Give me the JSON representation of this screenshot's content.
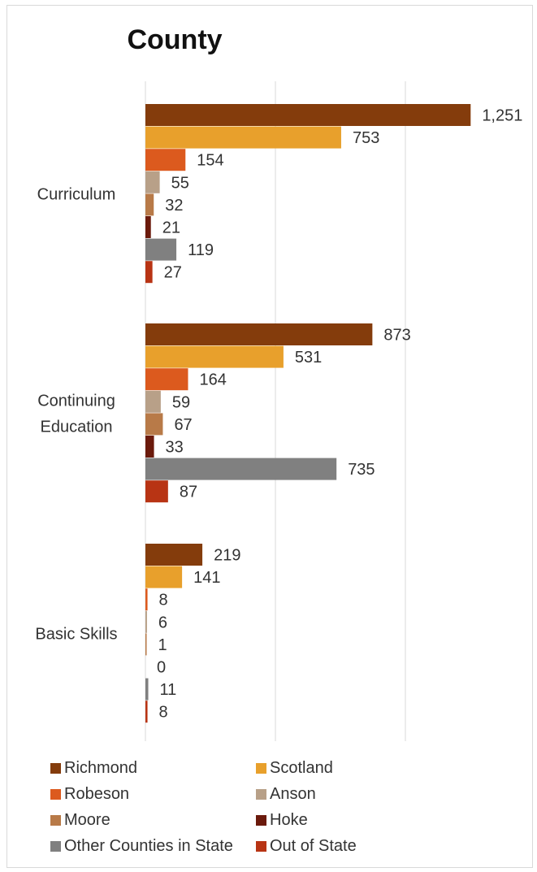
{
  "chart_data": {
    "type": "bar",
    "orientation": "horizontal",
    "title": "County",
    "categories": [
      "Curriculum",
      "Continuing Education",
      "Basic   Skills"
    ],
    "category_lines": [
      [
        "Curriculum"
      ],
      [
        "Continuing",
        "Education"
      ],
      [
        "Basic   Skills"
      ]
    ],
    "series": [
      {
        "name": "Richmond",
        "color": "#843c0c",
        "values": [
          1251,
          873,
          219
        ],
        "labels": [
          "1,251",
          "873",
          "219"
        ]
      },
      {
        "name": "Scotland",
        "color": "#e8a02c",
        "values": [
          753,
          531,
          141
        ],
        "labels": [
          "753",
          "531",
          "141"
        ]
      },
      {
        "name": "Robeson",
        "color": "#dc5a1e",
        "values": [
          154,
          164,
          8
        ],
        "labels": [
          "154",
          "164",
          "8"
        ]
      },
      {
        "name": "Anson",
        "color": "#b8a088",
        "values": [
          55,
          59,
          6
        ],
        "labels": [
          "55",
          "59",
          "6"
        ]
      },
      {
        "name": "Moore",
        "color": "#b87a48",
        "values": [
          32,
          67,
          1
        ],
        "labels": [
          "32",
          "67",
          "1"
        ]
      },
      {
        "name": "Hoke",
        "color": "#6b1a0c",
        "values": [
          21,
          33,
          0
        ],
        "labels": [
          "21",
          "33",
          "0"
        ]
      },
      {
        "name": "Other Counties in State",
        "color": "#808080",
        "values": [
          119,
          735,
          11
        ],
        "labels": [
          "119",
          "735",
          "11"
        ]
      },
      {
        "name": "Out of State",
        "color": "#b83414",
        "values": [
          27,
          87,
          8
        ],
        "labels": [
          "27",
          "87",
          "8"
        ]
      }
    ],
    "xlim": [
      0,
      1500
    ],
    "grid": true,
    "legend_position": "bottom"
  }
}
